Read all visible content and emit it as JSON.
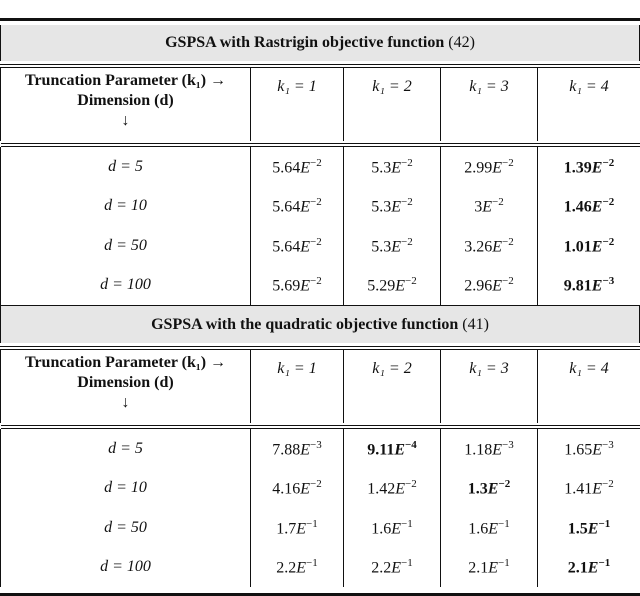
{
  "tables": [
    {
      "title": "GSPSA with Rastrigin objective function",
      "eq_ref": "(42)",
      "header": {
        "row_label_line1": "Truncation Parameter (k₁) →",
        "row_label_line2": "Dimension (d)",
        "row_label_line3": "↓",
        "columns": [
          "k₁ = 1",
          "k₁ = 2",
          "k₁ = 3",
          "k₁ = 4"
        ]
      },
      "rows": [
        {
          "d": "d = 5",
          "cells": [
            {
              "m": "5.64",
              "exp": "−2"
            },
            {
              "m": "5.3",
              "exp": "−2"
            },
            {
              "m": "2.99",
              "exp": "−2"
            },
            {
              "m": "1.39",
              "exp": "−2",
              "bold": true
            }
          ]
        },
        {
          "d": "d = 10",
          "cells": [
            {
              "m": "5.64",
              "exp": "−2"
            },
            {
              "m": "5.3",
              "exp": "−2"
            },
            {
              "m": "3",
              "exp": "−2"
            },
            {
              "m": "1.46",
              "exp": "−2",
              "bold": true
            }
          ]
        },
        {
          "d": "d = 50",
          "cells": [
            {
              "m": "5.64",
              "exp": "−2"
            },
            {
              "m": "5.3",
              "exp": "−2"
            },
            {
              "m": "3.26",
              "exp": "−2"
            },
            {
              "m": "1.01",
              "exp": "−2",
              "bold": true
            }
          ]
        },
        {
          "d": "d = 100",
          "cells": [
            {
              "m": "5.69",
              "exp": "−2"
            },
            {
              "m": "5.29",
              "exp": "−2"
            },
            {
              "m": "2.96",
              "exp": "−2"
            },
            {
              "m": "9.81",
              "exp": "−3",
              "bold": true
            }
          ]
        }
      ]
    },
    {
      "title": "GSPSA with the quadratic objective function",
      "eq_ref": "(41)",
      "header": {
        "row_label_line1": "Truncation Parameter (k₁) →",
        "row_label_line2": "Dimension (d)",
        "row_label_line3": "↓",
        "columns": [
          "k₁ = 1",
          "k₁ = 2",
          "k₁ = 3",
          "k₁ = 4"
        ]
      },
      "rows": [
        {
          "d": "d = 5",
          "cells": [
            {
              "m": "7.88",
              "exp": "−3"
            },
            {
              "m": "9.11",
              "exp": "−4",
              "bold": true
            },
            {
              "m": "1.18",
              "exp": "−3"
            },
            {
              "m": "1.65",
              "exp": "−3"
            }
          ]
        },
        {
          "d": "d = 10",
          "cells": [
            {
              "m": "4.16",
              "exp": "−2"
            },
            {
              "m": "1.42",
              "exp": "−2"
            },
            {
              "m": "1.3",
              "exp": "−2",
              "bold": true
            },
            {
              "m": "1.41",
              "exp": "−2"
            }
          ]
        },
        {
          "d": "d = 50",
          "cells": [
            {
              "m": "1.7",
              "exp": "−1"
            },
            {
              "m": "1.6",
              "exp": "−1"
            },
            {
              "m": "1.6",
              "exp": "−1"
            },
            {
              "m": "1.5",
              "exp": "−1",
              "bold": true
            }
          ]
        },
        {
          "d": "d = 100",
          "cells": [
            {
              "m": "2.2",
              "exp": "−1"
            },
            {
              "m": "2.2",
              "exp": "−1"
            },
            {
              "m": "2.1",
              "exp": "−1"
            },
            {
              "m": "2.1",
              "exp": "−1",
              "bold": true
            }
          ]
        }
      ]
    }
  ],
  "exponent_symbol": "E"
}
